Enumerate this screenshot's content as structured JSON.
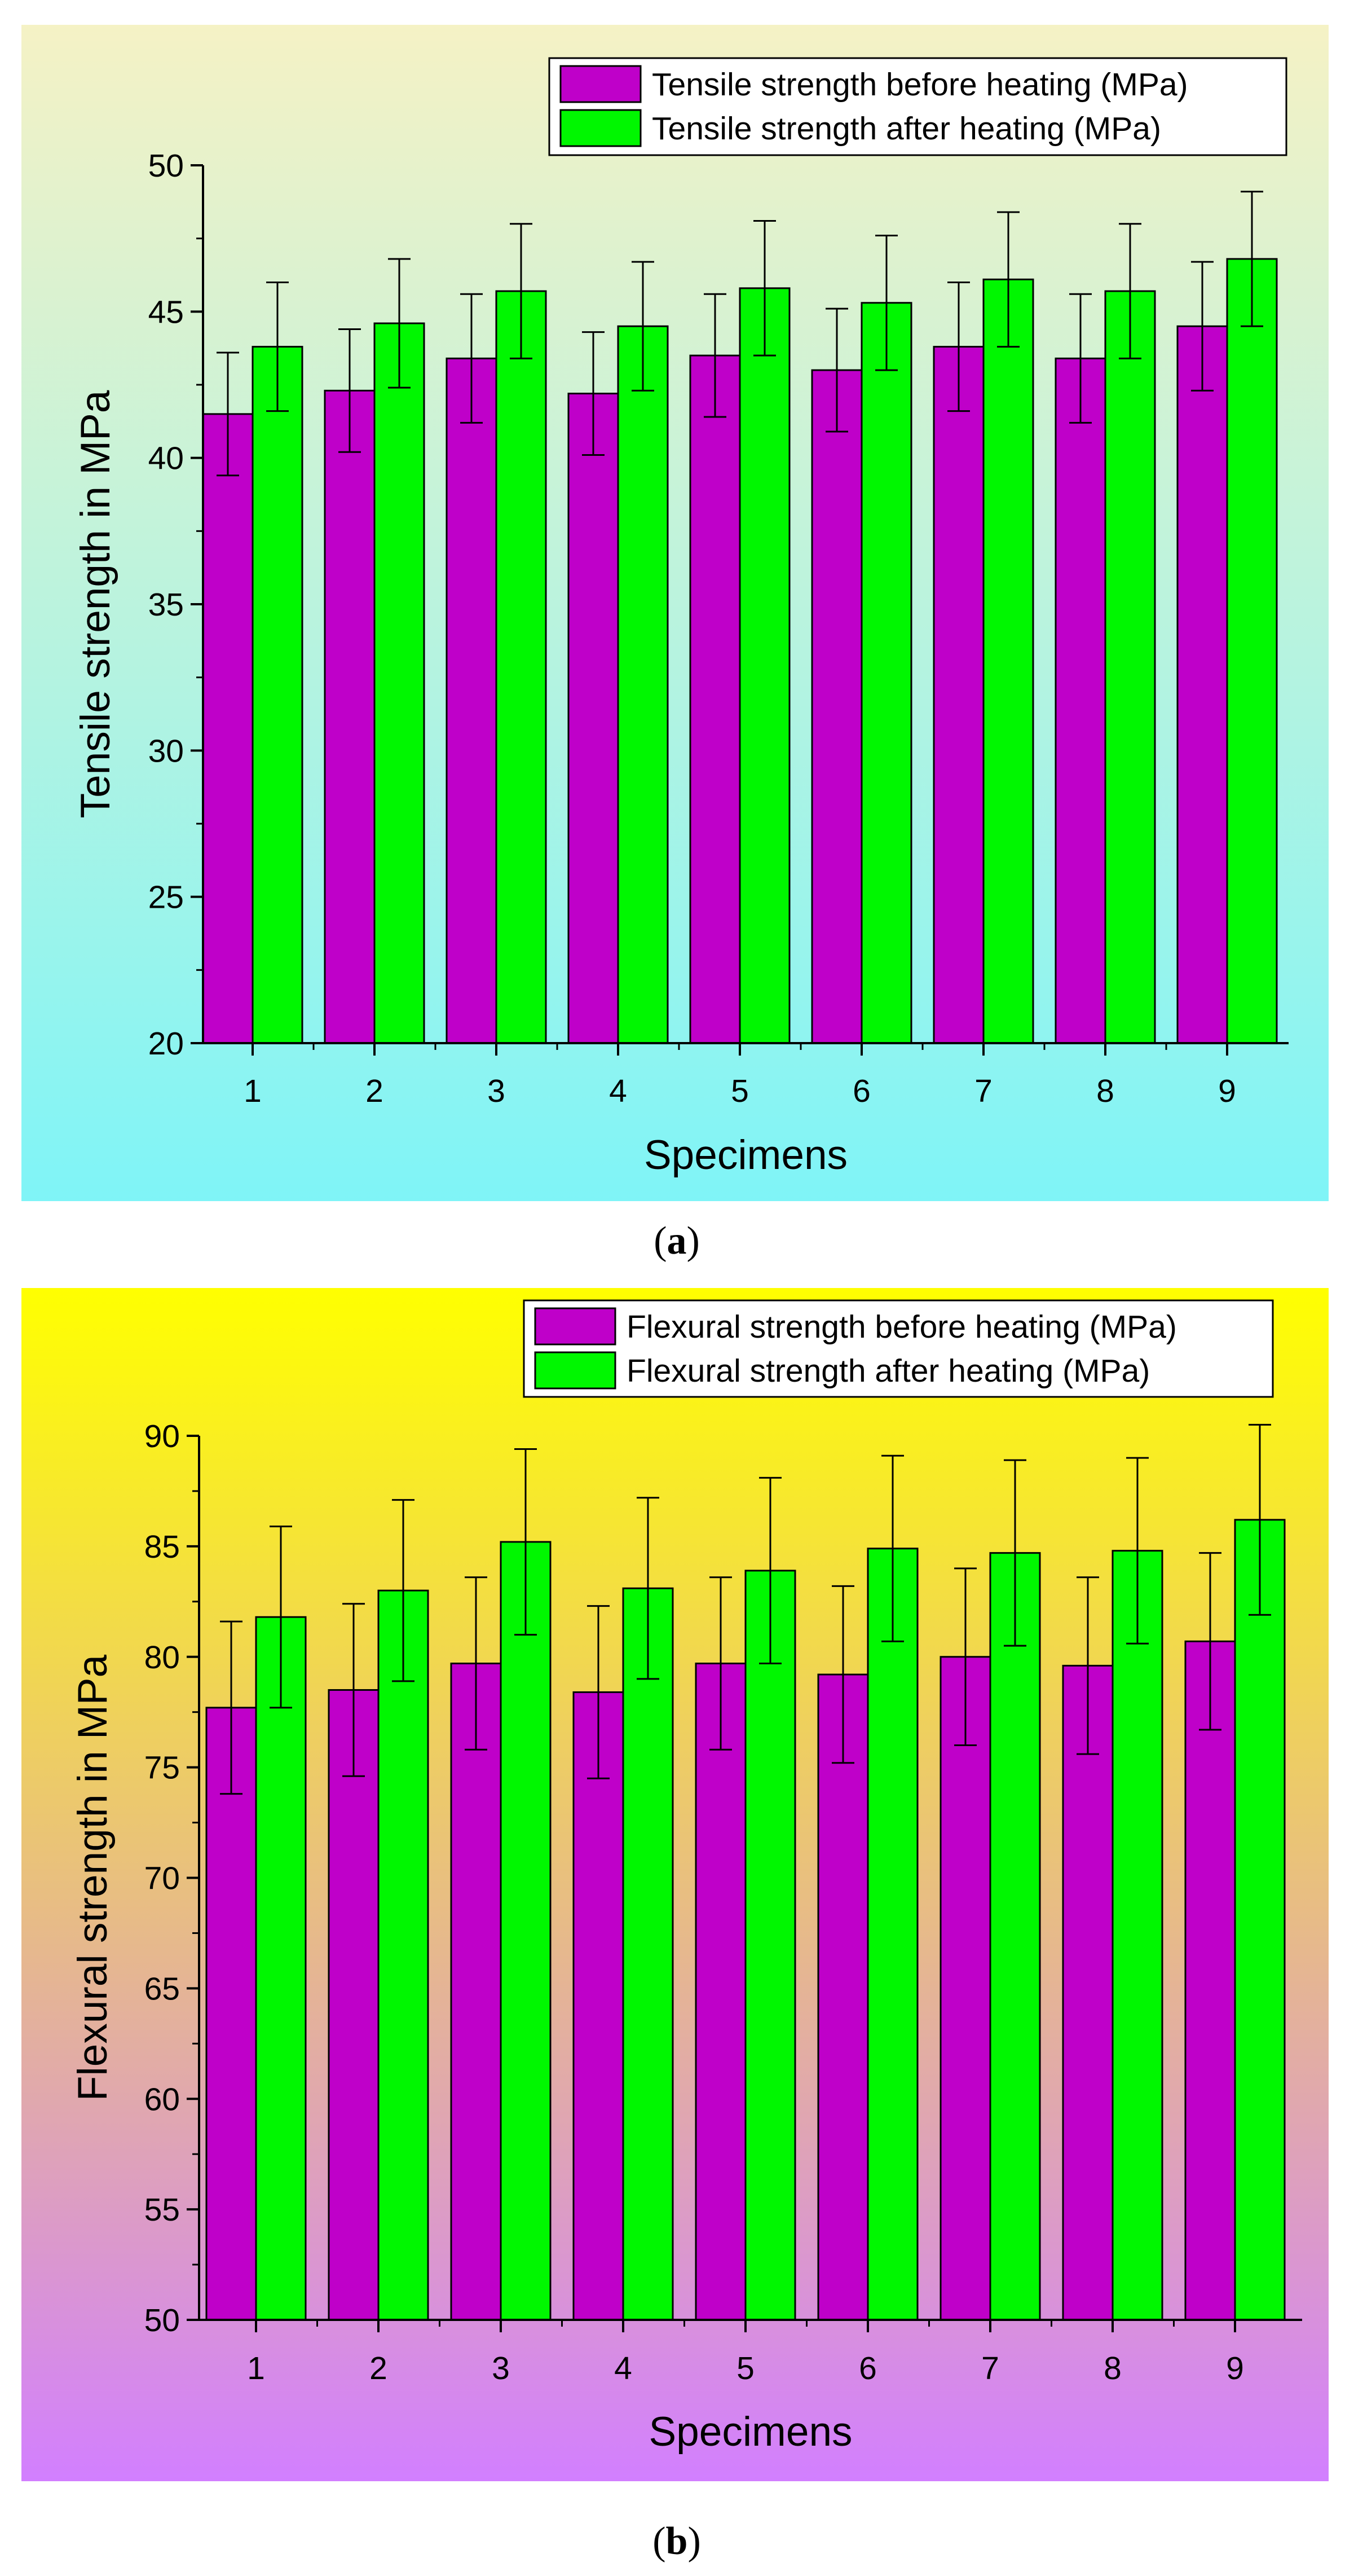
{
  "chart_data": [
    {
      "type": "bar",
      "panel": "a",
      "caption": "(a)",
      "caption_parts": [
        "(",
        "a",
        ")"
      ],
      "xlabel": "Specimens",
      "ylabel": "Tensile strength in MPa",
      "categories": [
        "1",
        "2",
        "3",
        "4",
        "5",
        "6",
        "7",
        "8",
        "9"
      ],
      "ylim": [
        20,
        50
      ],
      "yticks": [
        20,
        25,
        30,
        35,
        40,
        45,
        50
      ],
      "legend_position": "top-right",
      "background": {
        "top": "#f5f2c5",
        "bottom": "#7ff4f7"
      },
      "series": [
        {
          "name": "Tensile strength before heating (MPa)",
          "color": "#bf00c9",
          "values": [
            41.5,
            42.3,
            43.4,
            42.2,
            43.5,
            43.0,
            43.8,
            43.4,
            44.5
          ],
          "errors": [
            2.1,
            2.1,
            2.2,
            2.1,
            2.1,
            2.1,
            2.2,
            2.2,
            2.2
          ]
        },
        {
          "name": "Tensile strength after heating (MPa)",
          "color": "#00f700",
          "values": [
            43.8,
            44.6,
            45.7,
            44.5,
            45.8,
            45.3,
            46.1,
            45.7,
            46.8
          ],
          "errors": [
            2.2,
            2.2,
            2.3,
            2.2,
            2.3,
            2.3,
            2.3,
            2.3,
            2.3
          ]
        }
      ]
    },
    {
      "type": "bar",
      "panel": "b",
      "caption": "(b)",
      "caption_parts": [
        "(",
        "b",
        ")"
      ],
      "xlabel": "Specimens",
      "ylabel": "Flexural strength in MPa",
      "categories": [
        "1",
        "2",
        "3",
        "4",
        "5",
        "6",
        "7",
        "8",
        "9"
      ],
      "ylim": [
        50,
        90
      ],
      "yticks": [
        50,
        55,
        60,
        65,
        70,
        75,
        80,
        85,
        90
      ],
      "legend_position": "top-right",
      "background": {
        "top": "#ffff00",
        "bottom": "#d27fff"
      },
      "series": [
        {
          "name": "Flexural strength before heating (MPa)",
          "color": "#bf00c9",
          "values": [
            77.7,
            78.5,
            79.7,
            78.4,
            79.7,
            79.2,
            80.0,
            79.6,
            80.7
          ],
          "errors": [
            3.9,
            3.9,
            3.9,
            3.9,
            3.9,
            4.0,
            4.0,
            4.0,
            4.0
          ]
        },
        {
          "name": "Flexural strength after heating (MPa)",
          "color": "#00f700",
          "values": [
            81.8,
            83.0,
            85.2,
            83.1,
            83.9,
            84.9,
            84.7,
            84.8,
            86.2
          ],
          "errors": [
            4.1,
            4.1,
            4.2,
            4.1,
            4.2,
            4.2,
            4.2,
            4.2,
            4.3
          ]
        }
      ]
    }
  ]
}
